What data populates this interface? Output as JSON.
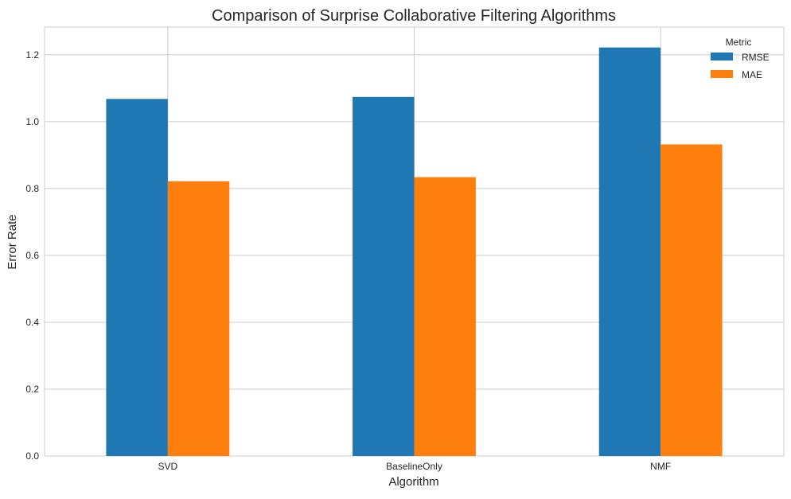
{
  "chart_data": {
    "type": "bar",
    "title": "Comparison of Surprise Collaborative Filtering Algorithms",
    "xlabel": "Algorithm",
    "ylabel": "Error Rate",
    "categories": [
      "SVD",
      "BaselineOnly",
      "NMF"
    ],
    "series": [
      {
        "name": "RMSE",
        "color": "#1f77b4",
        "values": [
          1.068,
          1.074,
          1.222
        ]
      },
      {
        "name": "MAE",
        "color": "#ff7f0e",
        "values": [
          0.822,
          0.834,
          0.932
        ]
      }
    ],
    "ylim": [
      0,
      1.283
    ],
    "yticks": [
      0.0,
      0.2,
      0.4,
      0.6,
      0.8,
      1.0,
      1.2
    ],
    "ytick_labels": [
      "0.0",
      "0.2",
      "0.4",
      "0.6",
      "0.8",
      "1.0",
      "1.2"
    ],
    "grid": true,
    "legend": {
      "title": "Metric",
      "placement": "top-right"
    }
  }
}
